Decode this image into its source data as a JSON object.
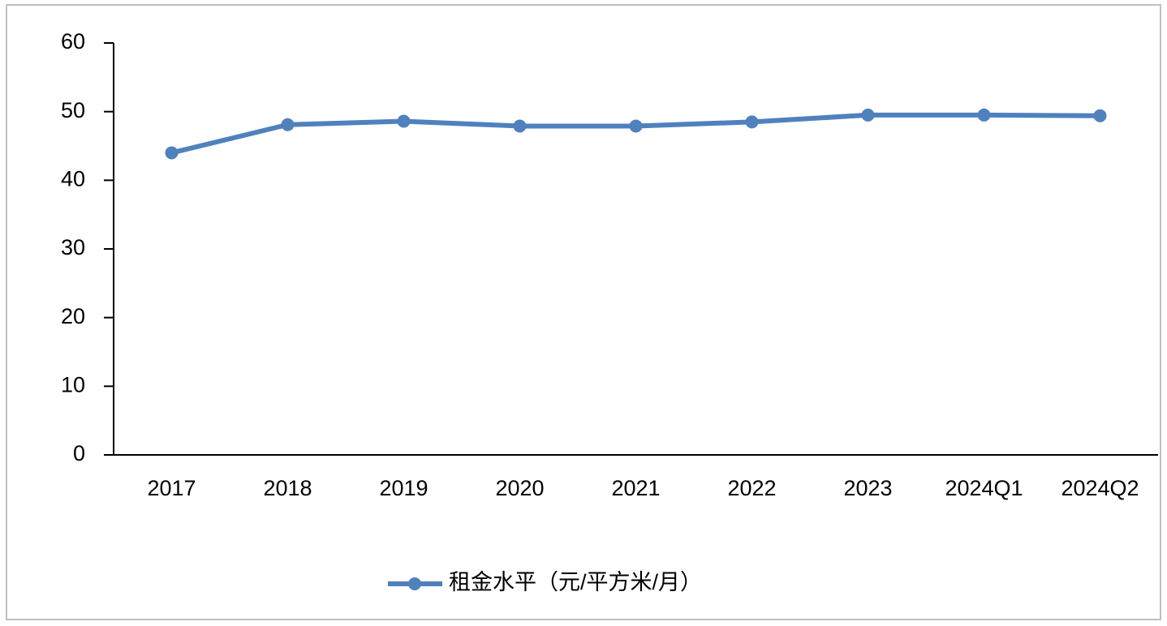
{
  "chart_data": {
    "type": "line",
    "categories": [
      "2017",
      "2018",
      "2019",
      "2020",
      "2021",
      "2022",
      "2023",
      "2024Q1",
      "2024Q2"
    ],
    "series": [
      {
        "name": "租金水平（元/平方米/月）",
        "color": "#4f81bd",
        "values": [
          44,
          48.1,
          48.6,
          47.9,
          47.9,
          48.5,
          49.5,
          49.5,
          49.4
        ]
      }
    ],
    "ylim": [
      0,
      60
    ],
    "yticks": [
      0,
      10,
      20,
      30,
      40,
      50,
      60
    ],
    "grid": false,
    "legend": "bottom"
  }
}
